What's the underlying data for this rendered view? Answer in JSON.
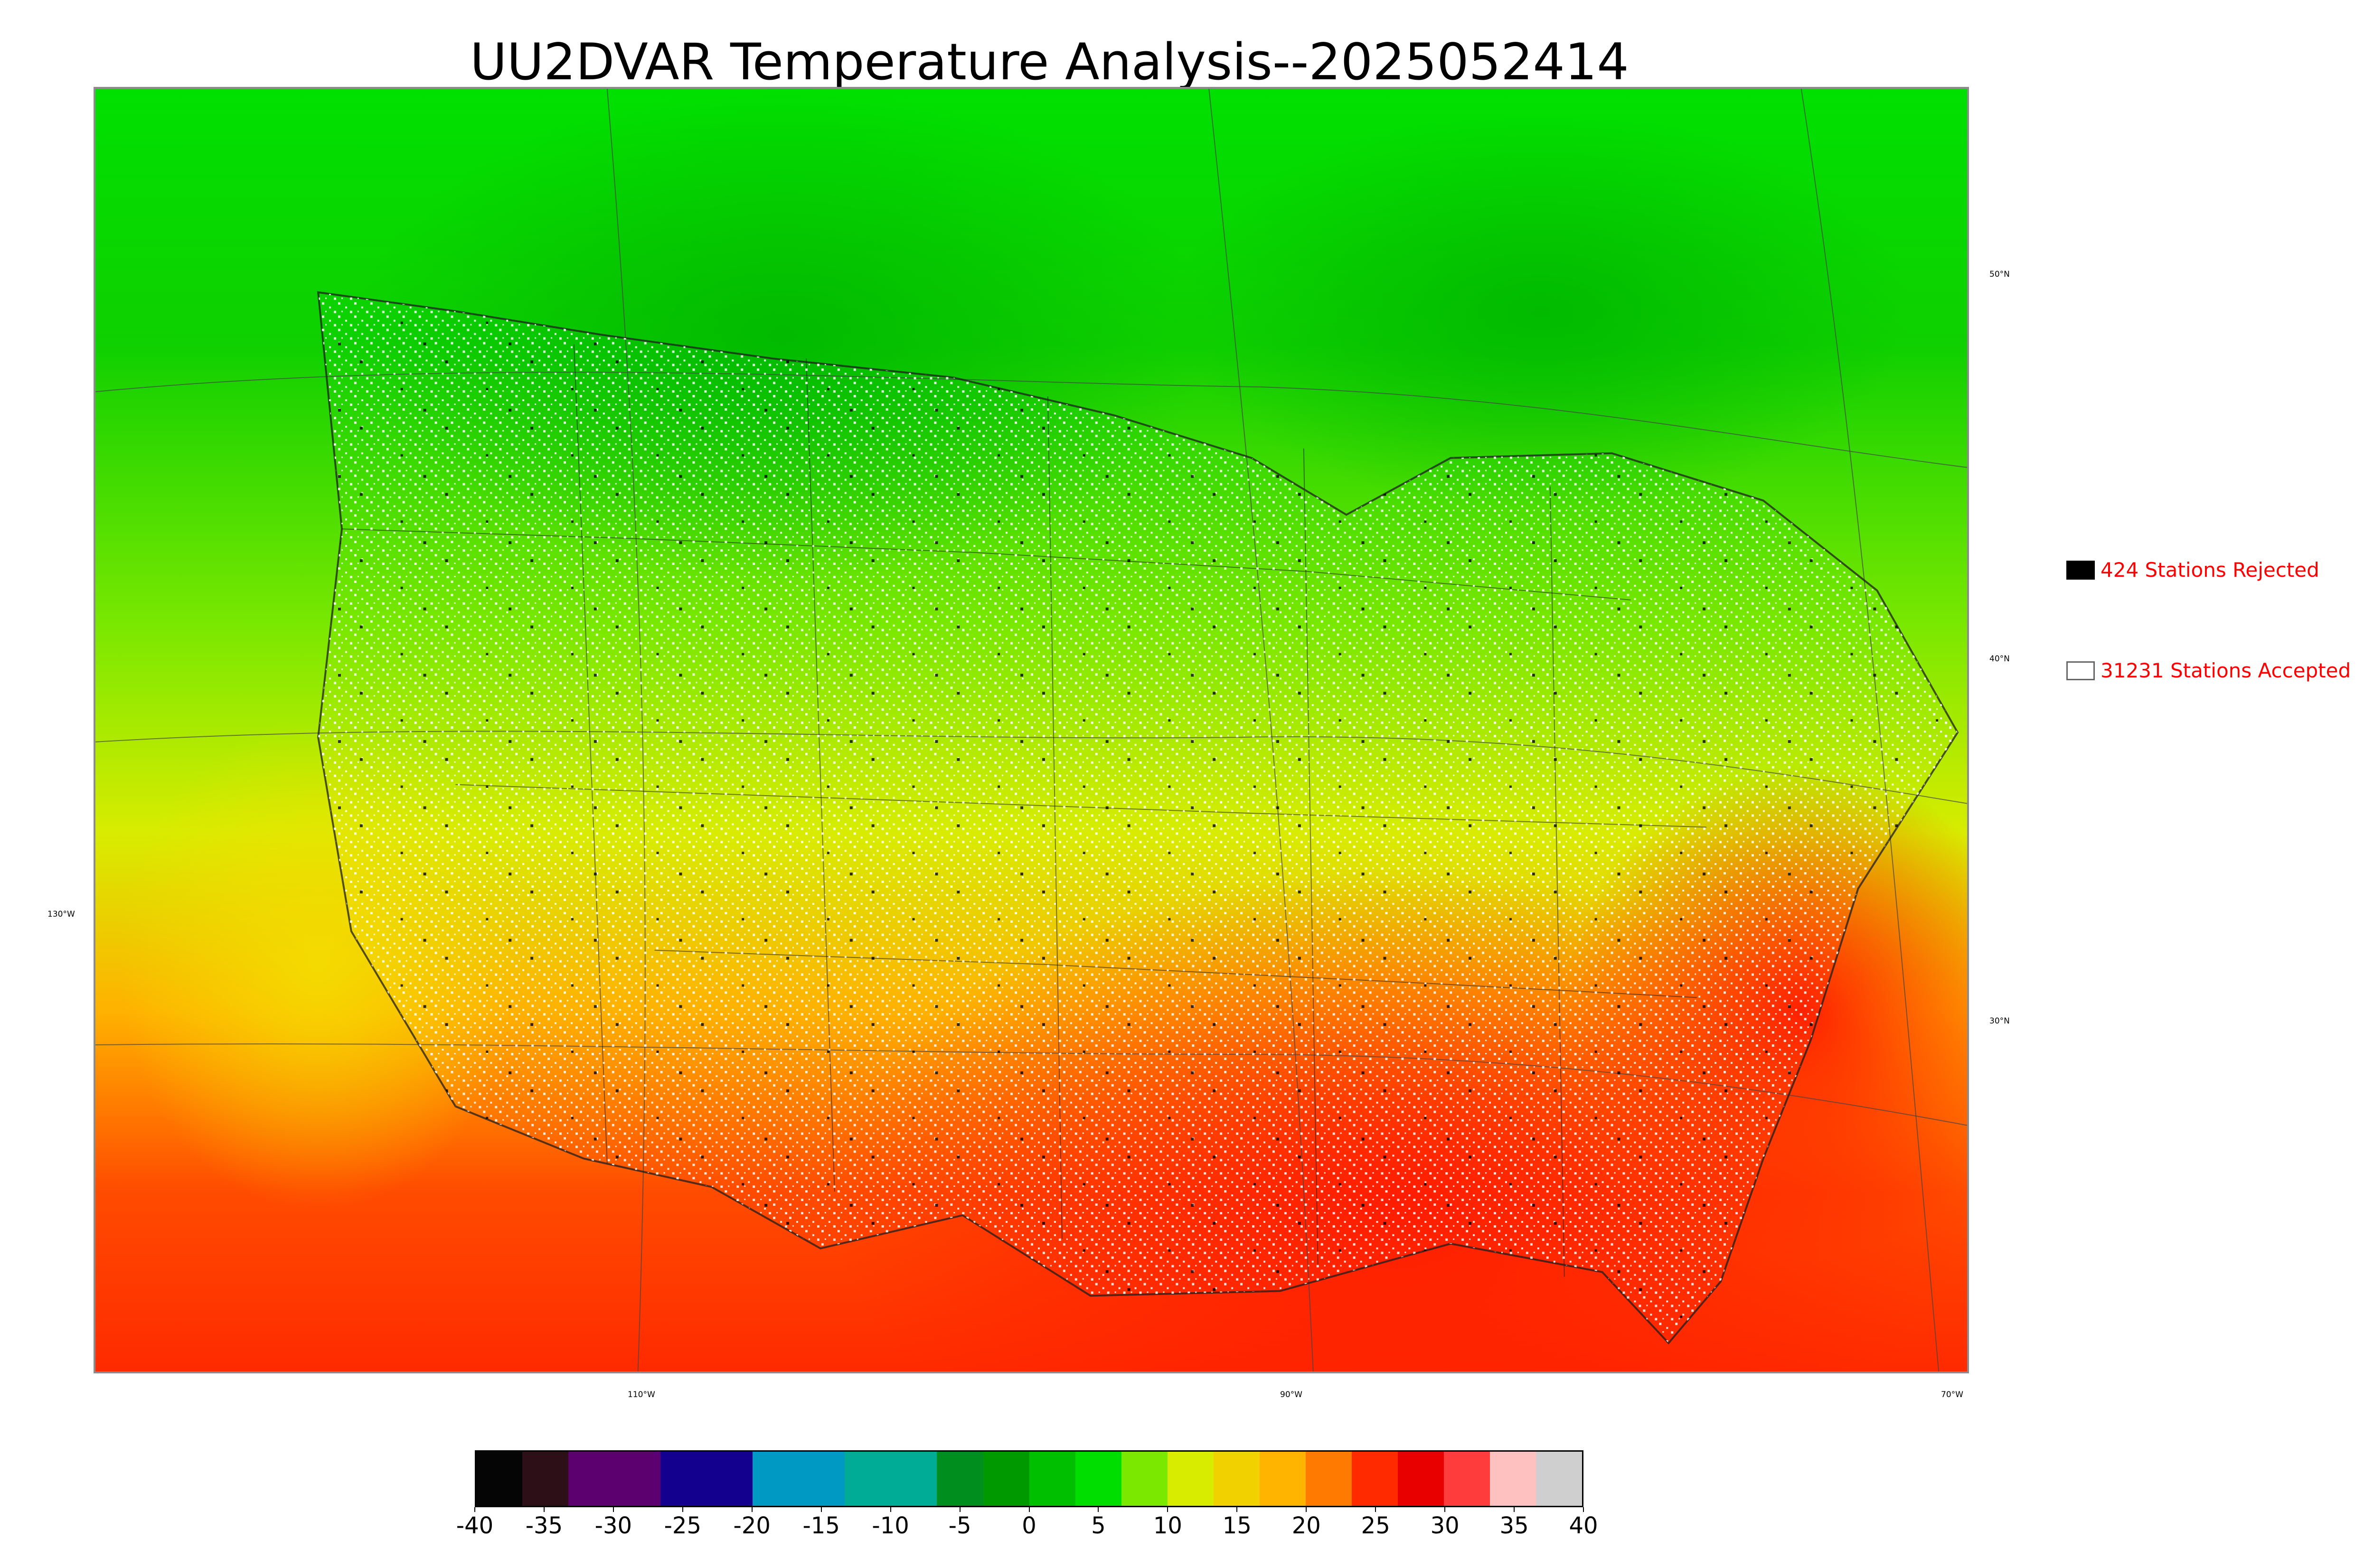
{
  "title": "UU2DVAR Temperature Analysis--2025052414",
  "map": {
    "lat_labels": [
      "50°N",
      "40°N",
      "30°N"
    ],
    "lon_labels": [
      "130°W",
      "110°W",
      "90°W",
      "70°W"
    ]
  },
  "legend": {
    "rejected_label": "424 Stations Rejected",
    "accepted_label": "31231 Stations Accepted",
    "rejected_color": "#000000",
    "accepted_color": "#ffffff",
    "text_color": "#ff0000"
  },
  "colorbar": {
    "range": [
      -40,
      40
    ],
    "tick_labels": [
      "-40",
      "-35",
      "-30",
      "-25",
      "-20",
      "-15",
      "-10",
      "-5",
      "0",
      "5",
      "10",
      "15",
      "20",
      "25",
      "30",
      "35",
      "40"
    ],
    "colors": [
      "#050505",
      "#2d0f18",
      "#5b006e",
      "#5b006e",
      "#13008f",
      "#13008f",
      "#0099c3",
      "#0099c3",
      "#00ac96",
      "#00ac96",
      "#008e1e",
      "#009a00",
      "#00be00",
      "#00de00",
      "#7be800",
      "#d8ec00",
      "#f1d200",
      "#ffb400",
      "#ff7a00",
      "#ff2a00",
      "#e80000",
      "#ff3c3c",
      "#ffc0c0",
      "#cfcfcf"
    ]
  }
}
